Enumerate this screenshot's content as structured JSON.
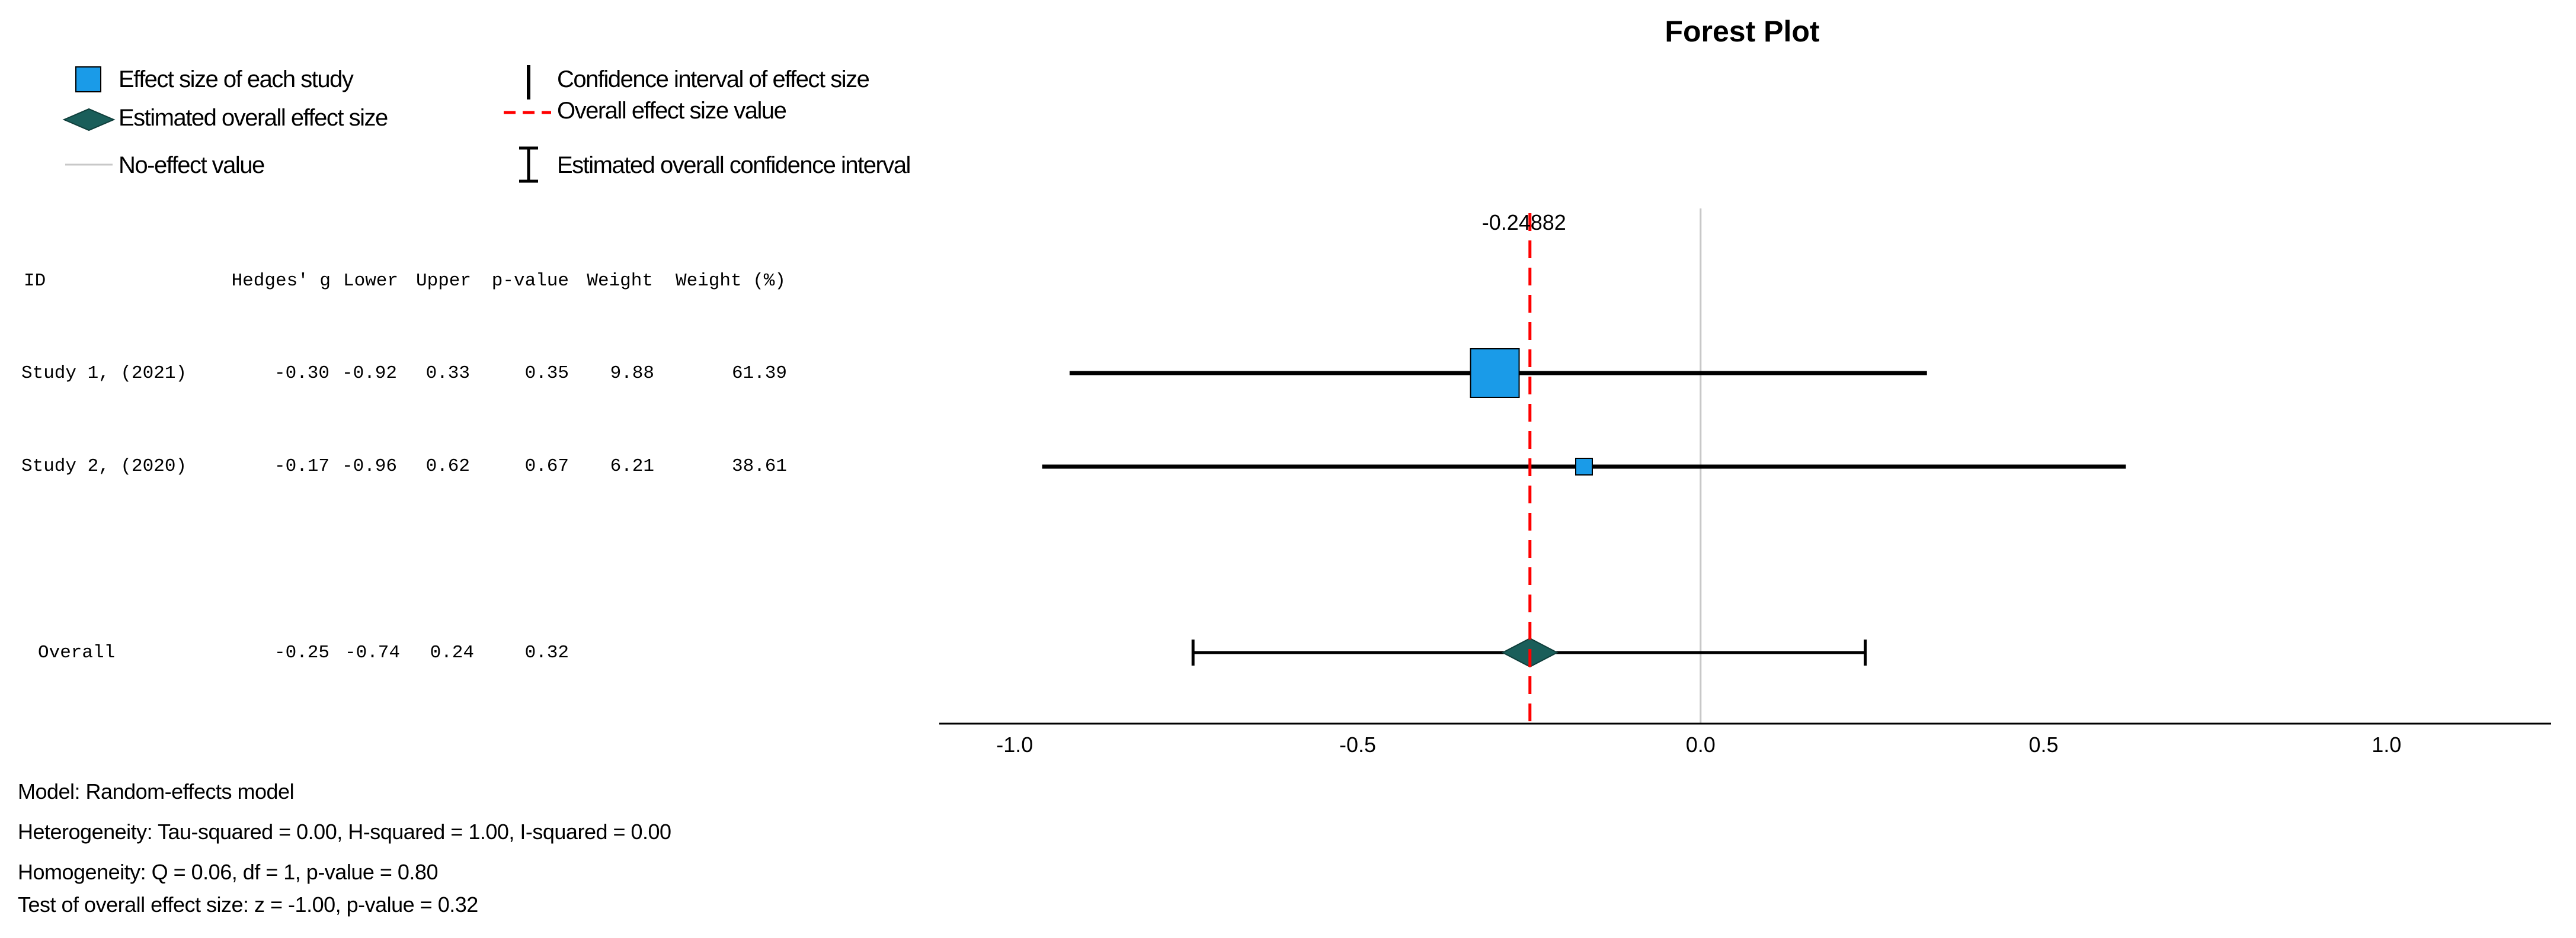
{
  "chart_data": {
    "type": "forest",
    "title": "Forest Plot",
    "legend": {
      "placement": "top-left",
      "effect_size_study": "Effect size of each study",
      "overall_effect_size": "Estimated overall effect size",
      "no_effect_value": "No-effect value",
      "ci_effect_size": "Confidence interval of effect size",
      "overall_effect_value": "Overall effect size value",
      "overall_ci": "Estimated overall confidence interval"
    },
    "columns": [
      "ID",
      "Hedges' g",
      "Lower",
      "Upper",
      "p-value",
      "Weight",
      "Weight (%)"
    ],
    "studies": [
      {
        "id": "Study 1, (2021)",
        "g": "-0.30",
        "lower": "-0.92",
        "upper": "0.33",
        "p": "0.35",
        "weight": "9.88",
        "weight_pct": "61.39"
      },
      {
        "id": "Study 2, (2020)",
        "g": "-0.17",
        "lower": "-0.96",
        "upper": "0.62",
        "p": "0.67",
        "weight": "6.21",
        "weight_pct": "38.61"
      }
    ],
    "overall": {
      "id": "Overall",
      "g": "-0.25",
      "lower": "-0.74",
      "upper": "0.24",
      "p": "0.32"
    },
    "overall_line_value": -0.24882,
    "overall_line_label": "-0.24882",
    "no_effect": 0.0,
    "xlim": [
      -1.11,
      1.24
    ],
    "xticks": [
      {
        "value": -1.0,
        "label": "-1.0"
      },
      {
        "value": -0.5,
        "label": "-0.5"
      },
      {
        "value": 0.0,
        "label": "0.0"
      },
      {
        "value": 0.5,
        "label": "0.5"
      },
      {
        "value": 1.0,
        "label": "1.0"
      }
    ],
    "colors": {
      "study_box": "#1a9be8",
      "overall_diamond": "#1a5e5a",
      "overall_line": "#ff0000",
      "no_effect_line": "#c8c8c8",
      "ci_line": "#000000"
    },
    "footer": [
      "Model: Random-effects model",
      "Heterogeneity: Tau-squared = 0.00, H-squared = 1.00, I-squared = 0.00",
      "Homogeneity: Q = 0.06, df = 1, p-value = 0.80",
      "Test of overall effect size: z = -1.00, p-value = 0.32"
    ]
  }
}
